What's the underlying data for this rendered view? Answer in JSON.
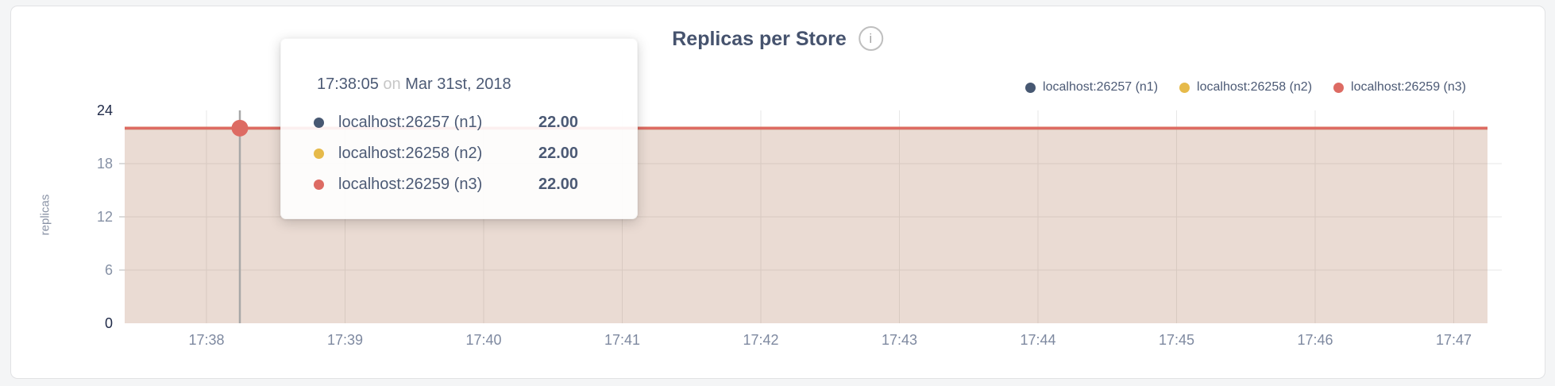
{
  "card": {
    "title": "Replicas per Store",
    "info_icon": "i"
  },
  "legend": [
    {
      "label": "localhost:26257 (n1)",
      "color": "#475872"
    },
    {
      "label": "localhost:26258 (n2)",
      "color": "#e6ba4a"
    },
    {
      "label": "localhost:26259 (n3)",
      "color": "#dd6b63"
    }
  ],
  "tooltip": {
    "time": "17:38:05",
    "separator": "on",
    "date": "Mar 31st, 2018",
    "rows": [
      {
        "label": "localhost:26257 (n1)",
        "value": "22.00",
        "color": "#475872"
      },
      {
        "label": "localhost:26258 (n2)",
        "value": "22.00",
        "color": "#e6ba4a"
      },
      {
        "label": "localhost:26259 (n3)",
        "value": "22.00",
        "color": "#dd6b63"
      }
    ]
  },
  "chart_data": {
    "type": "area",
    "title": "Replicas per Store",
    "ylabel": "replicas",
    "xlabel": "",
    "x_ticks": [
      "17:38",
      "17:39",
      "17:40",
      "17:41",
      "17:42",
      "17:43",
      "17:44",
      "17:45",
      "17:46",
      "17:47"
    ],
    "y_ticks": [
      24,
      18,
      12,
      6,
      0
    ],
    "ylim": [
      0,
      24
    ],
    "grid": true,
    "legend_position": "top-right",
    "series": [
      {
        "name": "localhost:26257 (n1)",
        "color": "#475872",
        "value": 22
      },
      {
        "name": "localhost:26258 (n2)",
        "color": "#e6ba4a",
        "value": 22
      },
      {
        "name": "localhost:26259 (n3)",
        "color": "#dd6b63",
        "value": 22
      }
    ],
    "hover": {
      "time": "17:38:05",
      "date": "Mar 31st, 2018",
      "value": 22,
      "marker_series": "localhost:26259 (n3)"
    }
  }
}
